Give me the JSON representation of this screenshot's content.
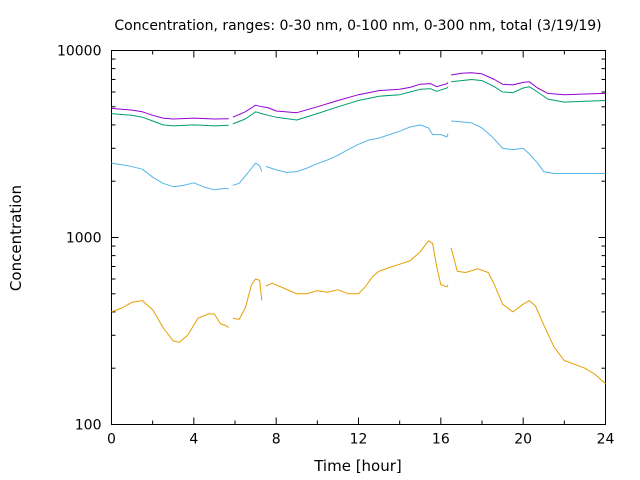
{
  "chart_data": {
    "type": "line",
    "title": "Concentration, ranges: 0-30 nm, 0-100 nm, 0-300 nm, total (3/19/19)",
    "xlabel": "Time [hour]",
    "ylabel": "Concentration",
    "xlim": [
      0,
      24
    ],
    "ylim": [
      100,
      10000
    ],
    "yscale": "log",
    "grid": false,
    "legend": "none",
    "x_ticks": [
      "0",
      "4",
      "8",
      "12",
      "16",
      "20",
      "24"
    ],
    "y_ticks": [
      "100",
      "1000",
      "10000"
    ],
    "series": [
      {
        "color": "#e69f00",
        "segments": [
          [
            [
              0,
              400
            ],
            [
              0.5,
              420
            ],
            [
              1,
              450
            ],
            [
              1.5,
              460
            ],
            [
              2,
              410
            ],
            [
              2.5,
              330
            ],
            [
              3,
              280
            ],
            [
              3.3,
              275
            ],
            [
              3.7,
              300
            ],
            [
              4.2,
              370
            ],
            [
              4.7,
              390
            ],
            [
              5.0,
              390
            ],
            [
              5.3,
              345
            ],
            [
              5.5,
              340
            ],
            [
              5.7,
              330
            ]
          ],
          [
            [
              5.9,
              370
            ],
            [
              6.2,
              365
            ],
            [
              6.5,
              420
            ],
            [
              6.8,
              560
            ],
            [
              7.0,
              600
            ],
            [
              7.2,
              590
            ],
            [
              7.3,
              460
            ]
          ],
          [
            [
              7.5,
              550
            ],
            [
              7.8,
              570
            ],
            [
              8.3,
              540
            ],
            [
              9,
              500
            ],
            [
              9.5,
              500
            ],
            [
              10,
              520
            ],
            [
              10.5,
              510
            ],
            [
              11,
              525
            ],
            [
              11.5,
              500
            ],
            [
              12,
              500
            ],
            [
              12.3,
              540
            ],
            [
              12.7,
              620
            ],
            [
              13,
              660
            ],
            [
              13.5,
              690
            ],
            [
              14,
              720
            ],
            [
              14.5,
              750
            ],
            [
              15,
              840
            ],
            [
              15.4,
              960
            ],
            [
              15.6,
              930
            ],
            [
              15.8,
              700
            ],
            [
              16.0,
              560
            ],
            [
              16.3,
              545
            ],
            [
              16.35,
              560
            ]
          ],
          [
            [
              16.5,
              880
            ],
            [
              16.8,
              660
            ],
            [
              17.2,
              650
            ],
            [
              17.8,
              680
            ],
            [
              18.3,
              650
            ],
            [
              18.6,
              560
            ],
            [
              19,
              440
            ],
            [
              19.5,
              400
            ],
            [
              20,
              440
            ],
            [
              20.3,
              460
            ],
            [
              20.6,
              430
            ],
            [
              21,
              340
            ],
            [
              21.5,
              260
            ],
            [
              22,
              220
            ],
            [
              23,
              200
            ],
            [
              23.5,
              185
            ],
            [
              24,
              165
            ]
          ]
        ]
      },
      {
        "color": "#56b4e9",
        "segments": [
          [
            [
              0,
              2500
            ],
            [
              0.8,
              2420
            ],
            [
              1.5,
              2320
            ],
            [
              2,
              2100
            ],
            [
              2.5,
              1950
            ],
            [
              3,
              1870
            ],
            [
              3.5,
              1900
            ],
            [
              4,
              1960
            ],
            [
              4.5,
              1860
            ],
            [
              5,
              1800
            ],
            [
              5.5,
              1830
            ],
            [
              5.7,
              1820
            ]
          ],
          [
            [
              5.9,
              1900
            ],
            [
              6.2,
              1950
            ],
            [
              6.6,
              2200
            ],
            [
              7.0,
              2500
            ],
            [
              7.2,
              2420
            ],
            [
              7.3,
              2250
            ]
          ],
          [
            [
              7.5,
              2400
            ],
            [
              8.0,
              2300
            ],
            [
              8.5,
              2230
            ],
            [
              9,
              2250
            ],
            [
              9.5,
              2350
            ],
            [
              10,
              2480
            ],
            [
              10.5,
              2600
            ],
            [
              11,
              2750
            ],
            [
              11.5,
              2950
            ],
            [
              12,
              3150
            ],
            [
              12.5,
              3320
            ],
            [
              13,
              3400
            ],
            [
              13.5,
              3550
            ],
            [
              14,
              3700
            ],
            [
              14.5,
              3900
            ],
            [
              15,
              4000
            ],
            [
              15.4,
              3850
            ],
            [
              15.6,
              3550
            ],
            [
              16.0,
              3550
            ],
            [
              16.3,
              3450
            ],
            [
              16.35,
              3600
            ]
          ],
          [
            [
              16.5,
              4200
            ],
            [
              17,
              4150
            ],
            [
              17.5,
              4100
            ],
            [
              18,
              3850
            ],
            [
              18.5,
              3450
            ],
            [
              19,
              3000
            ],
            [
              19.5,
              2950
            ],
            [
              20,
              3000
            ],
            [
              20.3,
              2800
            ],
            [
              20.7,
              2500
            ],
            [
              21,
              2250
            ],
            [
              21.5,
              2200
            ],
            [
              22,
              2200
            ],
            [
              23,
              2200
            ],
            [
              24,
              2200
            ]
          ]
        ]
      },
      {
        "color": "#009e73",
        "segments": [
          [
            [
              0,
              4600
            ],
            [
              1,
              4500
            ],
            [
              1.5,
              4400
            ],
            [
              2,
              4200
            ],
            [
              2.5,
              4000
            ],
            [
              3,
              3950
            ],
            [
              4,
              4000
            ],
            [
              5,
              3950
            ],
            [
              5.7,
              3980
            ]
          ],
          [
            [
              5.9,
              4050
            ],
            [
              6.5,
              4300
            ],
            [
              7,
              4700
            ],
            [
              7.3,
              4600
            ],
            [
              7.6,
              4500
            ],
            [
              8,
              4400
            ],
            [
              9,
              4250
            ],
            [
              10,
              4600
            ],
            [
              11,
              5000
            ],
            [
              12,
              5400
            ],
            [
              13,
              5700
            ],
            [
              14,
              5800
            ],
            [
              14.5,
              6000
            ],
            [
              15,
              6200
            ],
            [
              15.5,
              6250
            ],
            [
              15.8,
              6050
            ],
            [
              16.3,
              6300
            ],
            [
              16.35,
              6400
            ]
          ],
          [
            [
              16.5,
              6800
            ],
            [
              17,
              6900
            ],
            [
              17.5,
              7000
            ],
            [
              18,
              6900
            ],
            [
              18.6,
              6400
            ],
            [
              19,
              6000
            ],
            [
              19.5,
              5950
            ],
            [
              20,
              6300
            ],
            [
              20.3,
              6400
            ],
            [
              20.7,
              6000
            ],
            [
              21.2,
              5500
            ],
            [
              22,
              5300
            ],
            [
              23,
              5350
            ],
            [
              24,
              5400
            ]
          ]
        ]
      },
      {
        "color": "#9400d3",
        "segments": [
          [
            [
              0,
              4900
            ],
            [
              1,
              4800
            ],
            [
              1.5,
              4700
            ],
            [
              2,
              4500
            ],
            [
              2.5,
              4350
            ],
            [
              3,
              4300
            ],
            [
              4,
              4350
            ],
            [
              5,
              4300
            ],
            [
              5.7,
              4320
            ]
          ],
          [
            [
              5.9,
              4400
            ],
            [
              6.5,
              4700
            ],
            [
              7,
              5100
            ],
            [
              7.3,
              5000
            ],
            [
              7.6,
              4950
            ],
            [
              8,
              4750
            ],
            [
              9,
              4650
            ],
            [
              10,
              5000
            ],
            [
              11,
              5400
            ],
            [
              12,
              5800
            ],
            [
              13,
              6100
            ],
            [
              14,
              6200
            ],
            [
              14.5,
              6350
            ],
            [
              15,
              6600
            ],
            [
              15.5,
              6650
            ],
            [
              15.8,
              6400
            ],
            [
              16.3,
              6650
            ],
            [
              16.35,
              6750
            ]
          ],
          [
            [
              16.5,
              7400
            ],
            [
              17,
              7550
            ],
            [
              17.5,
              7600
            ],
            [
              18,
              7500
            ],
            [
              18.6,
              7000
            ],
            [
              19,
              6600
            ],
            [
              19.5,
              6550
            ],
            [
              20,
              6750
            ],
            [
              20.3,
              6800
            ],
            [
              20.7,
              6300
            ],
            [
              21.2,
              5900
            ],
            [
              22,
              5800
            ],
            [
              23,
              5850
            ],
            [
              24,
              5900
            ]
          ]
        ]
      }
    ]
  }
}
